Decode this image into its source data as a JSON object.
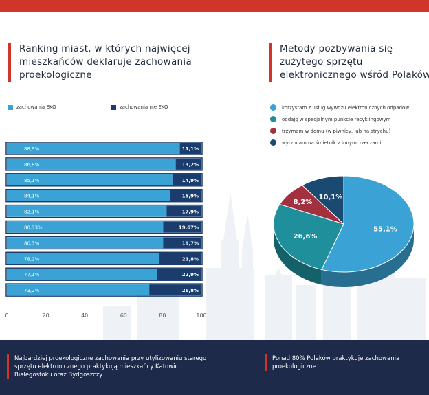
{
  "colors": {
    "accent": "#d0352a",
    "eko": "#3aa2d4",
    "not_eko": "#1a3d6e",
    "pie": [
      "#3aa2d4",
      "#1f8f9b",
      "#a3303f",
      "#1a4a72"
    ],
    "footer": "#1e2a4a"
  },
  "left_title": "Ranking miast, w których najwięcej mieszkańców deklaruje zachowania proekologiczne",
  "right_title": "Metody pozbywania się zużytego sprzętu elektronicznego wśród Polaków",
  "bar_legend": [
    "zachowania EKO",
    "zachowania nie EKO"
  ],
  "pie_legend": [
    "korzystam z usług wywozu elektronicznych odpadów",
    "oddaję w specjalnym punkcie recyklingowym",
    "trzymam w domu (w piwnicy, lub na strychu)",
    "wyrzucam na śmietnik z innymi rzeczami"
  ],
  "footer": {
    "left": "Najbardziej proekologiczne zachowania przy utylizowaniu starego sprzętu elektronicznego praktykują mieszkańcy Katowic, Białegostoku oraz Bydgoszczy",
    "right": "Ponad 80% Polaków praktykuje zachowania proekologiczne"
  },
  "chart_data": [
    {
      "type": "bar",
      "orientation": "horizontal",
      "stacked": true,
      "categories": [
        "",
        "",
        "",
        "",
        "",
        "",
        "",
        "",
        "",
        ""
      ],
      "series": [
        {
          "name": "zachowania EKO",
          "values": [
            88.9,
            86.8,
            85.1,
            84.1,
            82.1,
            80.33,
            80.3,
            78.2,
            77.1,
            73.2
          ],
          "labels": [
            "88,9%",
            "86,8%",
            "85,1%",
            "84,1%",
            "82,1%",
            "80,33%",
            "80,3%",
            "78,2%",
            "77,1%",
            "73,2%"
          ]
        },
        {
          "name": "zachowania nie EKO",
          "values": [
            11.1,
            13.2,
            14.9,
            15.9,
            17.9,
            19.67,
            19.7,
            21.8,
            22.9,
            26.8
          ],
          "labels": [
            "11,1%",
            "13,2%",
            "14,9%",
            "15,9%",
            "17,9%",
            "19,67%",
            "19,7%",
            "21,8%",
            "22,9%",
            "26,8%"
          ]
        }
      ],
      "xlim": [
        0,
        100
      ],
      "xticks": [
        "0",
        "20",
        "40",
        "60",
        "80",
        "100"
      ],
      "legend": "top"
    },
    {
      "type": "pie",
      "style": "3d",
      "values": [
        55.1,
        26.6,
        8.2,
        10.1
      ],
      "labels": [
        "55,1%",
        "26,6%",
        "8,2%",
        "10,1%"
      ],
      "legend": "top"
    }
  ]
}
